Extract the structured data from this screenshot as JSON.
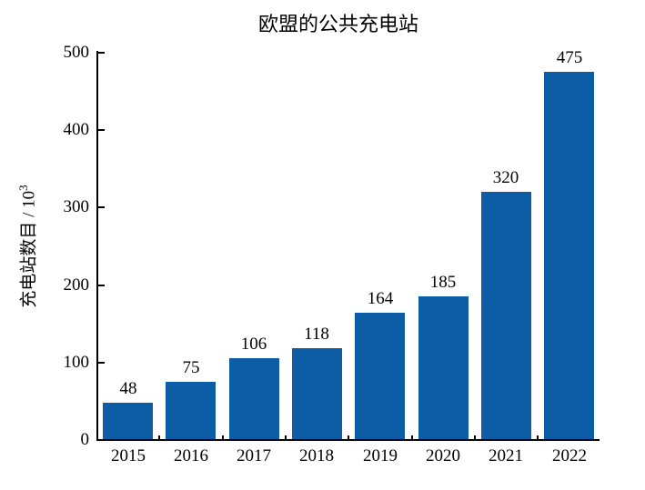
{
  "figure": {
    "ylabel_base": "充电站数目 / 10",
    "ylabel_exponent": "3"
  },
  "chart_data": {
    "type": "bar",
    "title": "欧盟的公共充电站",
    "categories": [
      "2015",
      "2016",
      "2017",
      "2018",
      "2019",
      "2020",
      "2021",
      "2022"
    ],
    "values": [
      48,
      75,
      106,
      118,
      164,
      185,
      320,
      475
    ],
    "bar_value_labels": [
      "48",
      "75",
      "106",
      "118",
      "164",
      "185",
      "320",
      "475"
    ],
    "xlabel": "",
    "ylabel": "充电站数目 / 10³",
    "ylim": [
      0,
      500
    ],
    "yticks": [
      0,
      100,
      200,
      300,
      400,
      500
    ],
    "bar_color": "#0C5DA5",
    "axis_color": "#000000",
    "grid": false,
    "legend_position": "none",
    "tick_direction": "in"
  }
}
